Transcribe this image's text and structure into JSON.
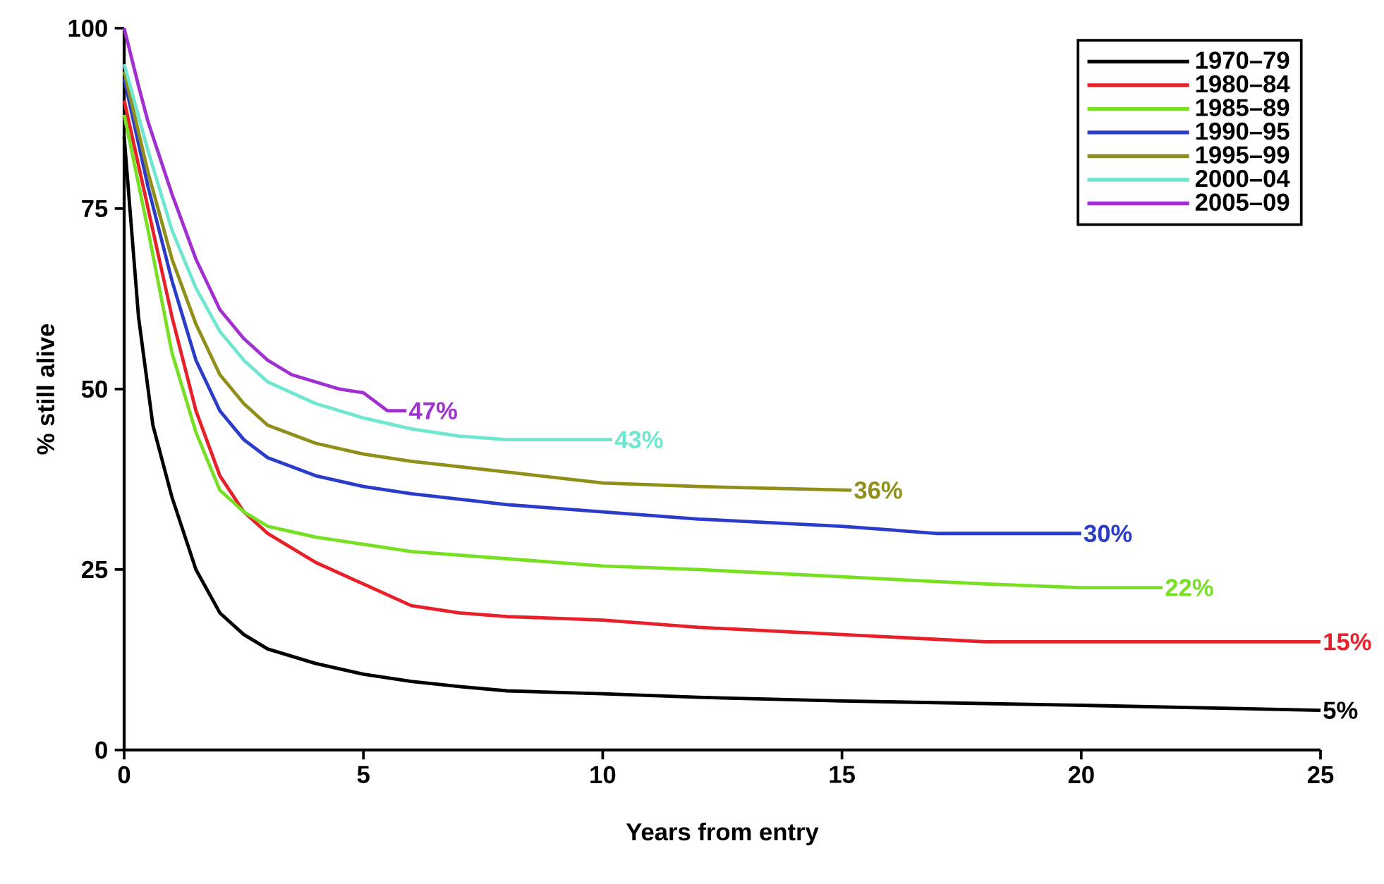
{
  "chart_data": {
    "type": "line",
    "xlabel": "Years from entry",
    "ylabel": "% still alive",
    "xlim": [
      0,
      25
    ],
    "ylim": [
      0,
      100
    ],
    "xticks": [
      0,
      5,
      10,
      15,
      20,
      25
    ],
    "yticks": [
      0,
      25,
      50,
      75,
      100
    ],
    "grid": false,
    "legend": "top right",
    "marker": "none",
    "line_style": "solid",
    "series": [
      {
        "name": "1970–79",
        "color": "#000000",
        "x": [
          0,
          0.3,
          0.6,
          1,
          1.5,
          2,
          2.5,
          3,
          4,
          5,
          6,
          7,
          8,
          10,
          12,
          15,
          20,
          25
        ],
        "values": [
          85,
          60,
          45,
          35,
          25,
          19,
          16,
          14,
          12,
          10.5,
          9.5,
          8.8,
          8.2,
          7.8,
          7.3,
          6.8,
          6.2,
          5.5
        ]
      },
      {
        "name": "1980–84",
        "color": "#e8202a",
        "x": [
          0,
          0.5,
          1,
          1.5,
          2,
          2.5,
          3,
          4,
          5,
          6,
          7,
          8,
          10,
          12,
          15,
          18,
          25
        ],
        "values": [
          90,
          75,
          60,
          47,
          38,
          33,
          30,
          26,
          23,
          20,
          19,
          18.5,
          18,
          17,
          16,
          15,
          15
        ]
      },
      {
        "name": "1985–89",
        "color": "#77e022",
        "x": [
          0,
          0.5,
          1,
          1.5,
          2,
          2.5,
          3,
          4,
          5,
          6,
          8,
          10,
          12,
          15,
          18,
          20,
          21.7
        ],
        "values": [
          88,
          72,
          55,
          44,
          36,
          33,
          31,
          29.5,
          28.5,
          27.5,
          26.5,
          25.5,
          25,
          24,
          23,
          22.5,
          22.5
        ]
      },
      {
        "name": "1990–95",
        "color": "#2b3cc8",
        "x": [
          0,
          0.5,
          1,
          1.5,
          2,
          2.5,
          3,
          4,
          5,
          6,
          8,
          10,
          12,
          15,
          17,
          20
        ],
        "values": [
          93,
          78,
          65,
          54,
          47,
          43,
          40.5,
          38,
          36.5,
          35.5,
          34,
          33,
          32,
          31,
          30,
          30
        ]
      },
      {
        "name": "1995–99",
        "color": "#8f8f1a",
        "x": [
          0,
          0.5,
          1,
          1.5,
          2,
          2.5,
          3,
          4,
          5,
          6,
          8,
          10,
          12,
          15.2
        ],
        "values": [
          94,
          80,
          68,
          59,
          52,
          48,
          45,
          42.5,
          41,
          40,
          38.5,
          37,
          36.5,
          36
        ]
      },
      {
        "name": "2000–04",
        "color": "#6ee6d0",
        "x": [
          0,
          0.5,
          1,
          1.5,
          2,
          2.5,
          3,
          4,
          5,
          6,
          7,
          8,
          10.2
        ],
        "values": [
          95,
          83,
          72,
          64,
          58,
          54,
          51,
          48,
          46,
          44.5,
          43.5,
          43,
          43
        ]
      },
      {
        "name": "2005–09",
        "color": "#a030d0",
        "x": [
          0,
          0.3,
          0.5,
          1,
          1.5,
          2,
          2.5,
          3,
          3.5,
          4,
          4.5,
          5,
          5.3,
          5.5,
          5.9
        ],
        "values": [
          100,
          92,
          87,
          77,
          68,
          61,
          57,
          54,
          52,
          51,
          50,
          49.5,
          48,
          47,
          47
        ]
      }
    ],
    "annotations": [
      {
        "text": "5%",
        "x": 25,
        "y": 5.5
      },
      {
        "text": "15%",
        "x": 25,
        "y": 15
      },
      {
        "text": "22%",
        "x": 21.7,
        "y": 22.5
      },
      {
        "text": "30%",
        "x": 20,
        "y": 30
      },
      {
        "text": "36%",
        "x": 15.2,
        "y": 36
      },
      {
        "text": "43%",
        "x": 10.2,
        "y": 43
      },
      {
        "text": "47%",
        "x": 5.9,
        "y": 47
      }
    ]
  }
}
